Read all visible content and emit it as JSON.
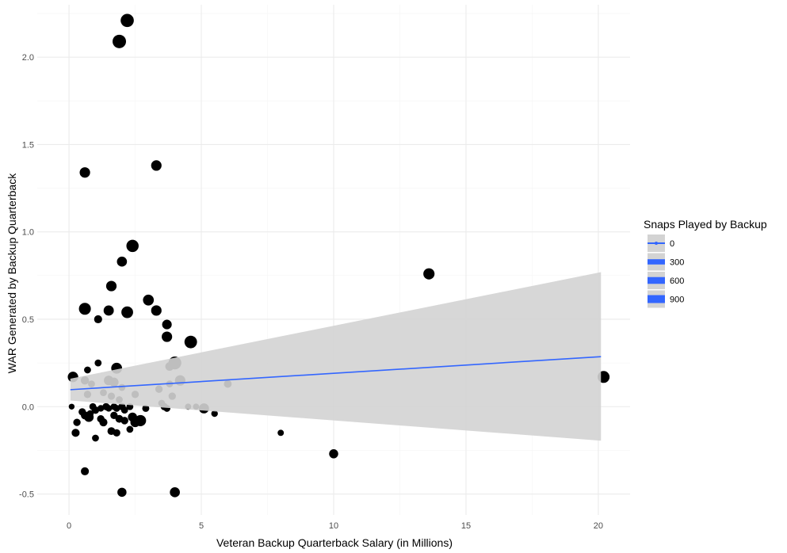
{
  "chart_data": {
    "type": "scatter",
    "title": "",
    "xlabel": "Veteran Backup Quarterback Salary (in Millions)",
    "ylabel": "WAR Generated by Backup Quarterback",
    "xlim": [
      -1.2,
      21.2
    ],
    "ylim": [
      -0.62,
      2.3
    ],
    "x_ticks": [
      0,
      5,
      10,
      15,
      20
    ],
    "y_ticks": [
      -0.5,
      0.0,
      0.5,
      1.0,
      1.5,
      2.0
    ],
    "x_tick_labels": [
      "0",
      "5",
      "10",
      "15",
      "20"
    ],
    "y_tick_labels": [
      "-0.5",
      "0.0",
      "0.5",
      "1.0",
      "1.5",
      "2.0"
    ],
    "grid": true,
    "colors": {
      "points": "#000000",
      "trend_line": "#3366FF",
      "ribbon": "#D3D3D3",
      "grid_major": "#EBEBEB",
      "grid_minor": "#F5F5F5"
    },
    "legend": {
      "title": "Snaps Played by Backup",
      "placement": "right",
      "entries": [
        "0",
        "300",
        "600",
        "900"
      ],
      "entry_values": [
        0,
        300,
        600,
        900
      ]
    },
    "trend": {
      "method": "linear",
      "x": [
        0.05,
        20.1
      ],
      "y": [
        0.097,
        0.286
      ],
      "ci_lower": [
        0.035,
        -0.195
      ],
      "ci_upper": [
        0.16,
        0.77
      ]
    },
    "points": [
      {
        "x": 2.2,
        "y": 2.21,
        "snaps": 850
      },
      {
        "x": 1.9,
        "y": 2.09,
        "snaps": 900
      },
      {
        "x": 0.6,
        "y": 1.34,
        "snaps": 450
      },
      {
        "x": 3.3,
        "y": 1.38,
        "snaps": 450
      },
      {
        "x": 2.4,
        "y": 0.92,
        "snaps": 700
      },
      {
        "x": 2.0,
        "y": 0.83,
        "snaps": 400
      },
      {
        "x": 1.6,
        "y": 0.69,
        "snaps": 450
      },
      {
        "x": 3.0,
        "y": 0.61,
        "snaps": 500
      },
      {
        "x": 0.6,
        "y": 0.56,
        "snaps": 650
      },
      {
        "x": 1.5,
        "y": 0.55,
        "snaps": 420
      },
      {
        "x": 2.2,
        "y": 0.54,
        "snaps": 620
      },
      {
        "x": 3.3,
        "y": 0.55,
        "snaps": 450
      },
      {
        "x": 1.1,
        "y": 0.5,
        "snaps": 200
      },
      {
        "x": 3.7,
        "y": 0.47,
        "snaps": 350
      },
      {
        "x": 3.7,
        "y": 0.4,
        "snaps": 450
      },
      {
        "x": 4.6,
        "y": 0.37,
        "snaps": 750
      },
      {
        "x": 4.0,
        "y": 0.25,
        "snaps": 800
      },
      {
        "x": 3.8,
        "y": 0.23,
        "snaps": 250
      },
      {
        "x": 1.8,
        "y": 0.22,
        "snaps": 500
      },
      {
        "x": 0.15,
        "y": 0.17,
        "snaps": 450
      },
      {
        "x": 0.7,
        "y": 0.21,
        "snaps": 120
      },
      {
        "x": 1.1,
        "y": 0.25,
        "snaps": 120
      },
      {
        "x": 4.2,
        "y": 0.15,
        "snaps": 450
      },
      {
        "x": 1.5,
        "y": 0.15,
        "snaps": 350
      },
      {
        "x": 1.7,
        "y": 0.14,
        "snaps": 300
      },
      {
        "x": 0.6,
        "y": 0.15,
        "snaps": 220
      },
      {
        "x": 0.85,
        "y": 0.13,
        "snaps": 120
      },
      {
        "x": 3.8,
        "y": 0.13,
        "snaps": 120
      },
      {
        "x": 6.0,
        "y": 0.13,
        "snaps": 180
      },
      {
        "x": 2.0,
        "y": 0.11,
        "snaps": 120
      },
      {
        "x": 3.4,
        "y": 0.1,
        "snaps": 150
      },
      {
        "x": 0.7,
        "y": 0.07,
        "snaps": 150
      },
      {
        "x": 1.3,
        "y": 0.08,
        "snaps": 120
      },
      {
        "x": 1.6,
        "y": 0.06,
        "snaps": 140
      },
      {
        "x": 2.5,
        "y": 0.07,
        "snaps": 150
      },
      {
        "x": 1.9,
        "y": 0.04,
        "snaps": 120
      },
      {
        "x": 3.9,
        "y": 0.06,
        "snaps": 150
      },
      {
        "x": 0.1,
        "y": 0.0,
        "snaps": 60
      },
      {
        "x": 0.9,
        "y": 0.0,
        "snaps": 120
      },
      {
        "x": 1.2,
        "y": -0.01,
        "snaps": 100
      },
      {
        "x": 1.4,
        "y": 0.0,
        "snaps": 140
      },
      {
        "x": 1.5,
        "y": -0.01,
        "snaps": 100
      },
      {
        "x": 1.7,
        "y": 0.0,
        "snaps": 110
      },
      {
        "x": 1.8,
        "y": -0.01,
        "snaps": 120
      },
      {
        "x": 2.0,
        "y": 0.0,
        "snaps": 150
      },
      {
        "x": 2.1,
        "y": -0.02,
        "snaps": 120
      },
      {
        "x": 2.3,
        "y": 0.0,
        "snaps": 120
      },
      {
        "x": 2.9,
        "y": -0.01,
        "snaps": 130
      },
      {
        "x": 3.5,
        "y": 0.02,
        "snaps": 110
      },
      {
        "x": 3.6,
        "y": 0.0,
        "snaps": 150
      },
      {
        "x": 3.7,
        "y": -0.01,
        "snaps": 120
      },
      {
        "x": 4.5,
        "y": 0.0,
        "snaps": 80
      },
      {
        "x": 4.8,
        "y": 0.0,
        "snaps": 80
      },
      {
        "x": 5.1,
        "y": -0.01,
        "snaps": 400
      },
      {
        "x": 5.5,
        "y": -0.04,
        "snaps": 100
      },
      {
        "x": 0.5,
        "y": -0.03,
        "snaps": 150
      },
      {
        "x": 0.8,
        "y": -0.04,
        "snaps": 120
      },
      {
        "x": 1.0,
        "y": -0.02,
        "snaps": 150
      },
      {
        "x": 0.3,
        "y": -0.09,
        "snaps": 150
      },
      {
        "x": 0.6,
        "y": -0.05,
        "snaps": 200
      },
      {
        "x": 0.75,
        "y": -0.06,
        "snaps": 350
      },
      {
        "x": 1.2,
        "y": -0.07,
        "snaps": 150
      },
      {
        "x": 1.3,
        "y": -0.09,
        "snaps": 200
      },
      {
        "x": 1.7,
        "y": -0.05,
        "snaps": 150
      },
      {
        "x": 1.9,
        "y": -0.07,
        "snaps": 180
      },
      {
        "x": 2.1,
        "y": -0.08,
        "snaps": 160
      },
      {
        "x": 2.4,
        "y": -0.06,
        "snaps": 300
      },
      {
        "x": 2.7,
        "y": -0.08,
        "snaps": 550
      },
      {
        "x": 2.5,
        "y": -0.09,
        "snaps": 350
      },
      {
        "x": 2.3,
        "y": -0.13,
        "snaps": 120
      },
      {
        "x": 1.6,
        "y": -0.14,
        "snaps": 180
      },
      {
        "x": 1.8,
        "y": -0.15,
        "snaps": 150
      },
      {
        "x": 0.25,
        "y": -0.15,
        "snaps": 200
      },
      {
        "x": 1.0,
        "y": -0.18,
        "snaps": 120
      },
      {
        "x": 0.6,
        "y": -0.37,
        "snaps": 200
      },
      {
        "x": 2.0,
        "y": -0.49,
        "snaps": 300
      },
      {
        "x": 4.0,
        "y": -0.49,
        "snaps": 400
      },
      {
        "x": 8.0,
        "y": -0.15,
        "snaps": 80
      },
      {
        "x": 10.0,
        "y": -0.27,
        "snaps": 300
      },
      {
        "x": 13.6,
        "y": 0.76,
        "snaps": 550
      },
      {
        "x": 20.2,
        "y": 0.17,
        "snaps": 650
      }
    ]
  }
}
